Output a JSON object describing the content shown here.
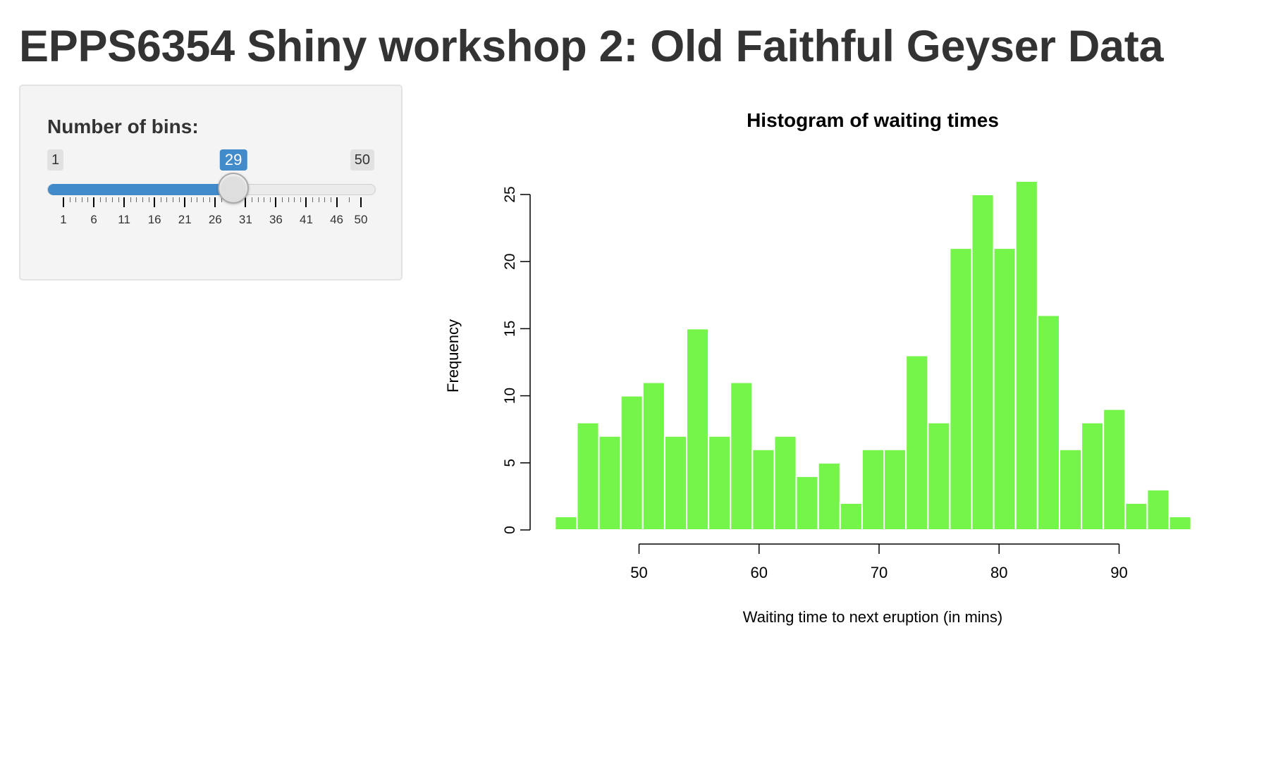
{
  "page": {
    "title": "EPPS6354 Shiny workshop 2: Old Faithful Geyser Data"
  },
  "sidebar": {
    "slider": {
      "label": "Number of bins:",
      "min": 1,
      "max": 50,
      "value": 29,
      "min_label": "1",
      "max_label": "50",
      "value_label": "29",
      "tick_labels": [
        "1",
        "6",
        "11",
        "16",
        "21",
        "26",
        "31",
        "36",
        "41",
        "46",
        "50"
      ],
      "fill_color": "#428bca"
    }
  },
  "chart_data": {
    "type": "bar",
    "title": "Histogram of waiting times",
    "xlabel": "Waiting time to next eruption (in mins)",
    "ylabel": "Frequency",
    "bar_color": "#75f54a",
    "bar_border": "#ffffff",
    "x_start": 43,
    "bin_width": 1.8275862,
    "values": [
      1,
      8,
      7,
      10,
      11,
      7,
      15,
      7,
      11,
      6,
      7,
      4,
      5,
      2,
      6,
      6,
      13,
      8,
      21,
      25,
      21,
      26,
      16,
      6,
      8,
      9,
      2,
      3,
      1
    ],
    "xlim": [
      43,
      96
    ],
    "ylim": [
      0,
      26
    ],
    "x_ticks": [
      50,
      60,
      70,
      80,
      90
    ],
    "x_tick_labels": [
      "50",
      "60",
      "70",
      "80",
      "90"
    ],
    "y_ticks": [
      0,
      5,
      10,
      15,
      20,
      25
    ],
    "y_tick_labels": [
      "0",
      "5",
      "10",
      "15",
      "20",
      "25"
    ],
    "grid": false,
    "legend": "none"
  }
}
